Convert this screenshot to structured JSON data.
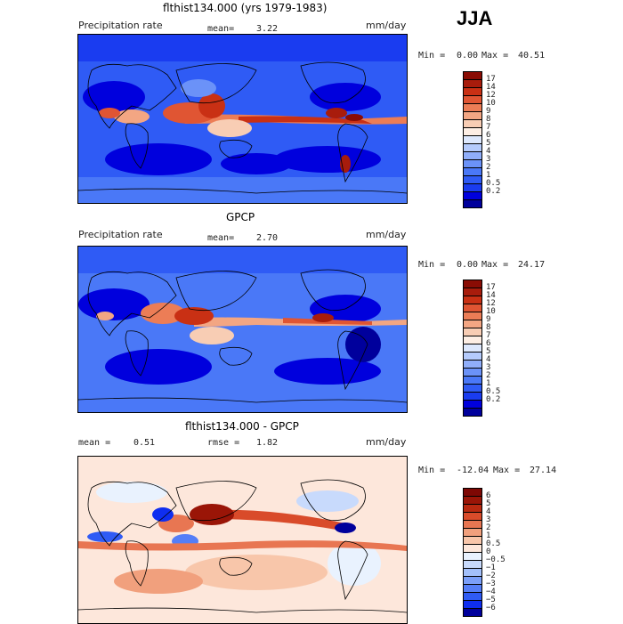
{
  "season": "JJA",
  "colors": {
    "prec_scale": [
      "#00009c",
      "#0000dd",
      "#1a3cf0",
      "#2f5bf5",
      "#4a78f7",
      "#6b92f8",
      "#90aefa",
      "#b5cbfc",
      "#dde8fd",
      "#fdeee4",
      "#f8cdb4",
      "#f3a683",
      "#ec7d56",
      "#e05533",
      "#c93014",
      "#a81c0c",
      "#8a0c04"
    ],
    "diff_scale": [
      "#00009c",
      "#0f2ef0",
      "#2f5bf5",
      "#557ef7",
      "#7b9ff9",
      "#a3c0fb",
      "#c8dafc",
      "#e9f2fe",
      "#fde7db",
      "#f8c6aa",
      "#f1a07d",
      "#e87652",
      "#d94b2a",
      "#b92910",
      "#9a1507",
      "#7e0804"
    ]
  },
  "panels": [
    {
      "title": "flthist134.000 (yrs 1979-1983)",
      "left_label": "Precipitation rate",
      "stat_label": "mean=",
      "stat_value": "3.22",
      "units": "mm/day",
      "min_label": "Min =",
      "min_value": "0.00",
      "max_label": "Max =",
      "max_value": "40.51",
      "cbar_labels": [
        "17",
        "14",
        "12",
        "10",
        "9",
        "8",
        "7",
        "6",
        "5",
        "4",
        "3",
        "2",
        "1",
        "0.5",
        "0.2"
      ]
    },
    {
      "title": "GPCP",
      "left_label": "Precipitation rate",
      "stat_label": "mean=",
      "stat_value": "2.70",
      "units": "mm/day",
      "min_label": "Min =",
      "min_value": "0.00",
      "max_label": "Max =",
      "max_value": "24.17",
      "cbar_labels": [
        "17",
        "14",
        "12",
        "10",
        "9",
        "8",
        "7",
        "6",
        "5",
        "4",
        "3",
        "2",
        "1",
        "0.5",
        "0.2"
      ]
    },
    {
      "title": "flthist134.000 - GPCP",
      "left_label": "mean =",
      "left_value": "0.51",
      "stat_label": "rmse =",
      "stat_value": "1.82",
      "units": "mm/day",
      "min_label": "Min =",
      "min_value": "-12.04",
      "max_label": "Max =",
      "max_value": "27.14",
      "cbar_labels": [
        "6",
        "5",
        "4",
        "3",
        "2",
        "1",
        "0.5",
        "0",
        "−0.5",
        "−1",
        "−2",
        "−3",
        "−4",
        "−5",
        "−6"
      ]
    }
  ]
}
